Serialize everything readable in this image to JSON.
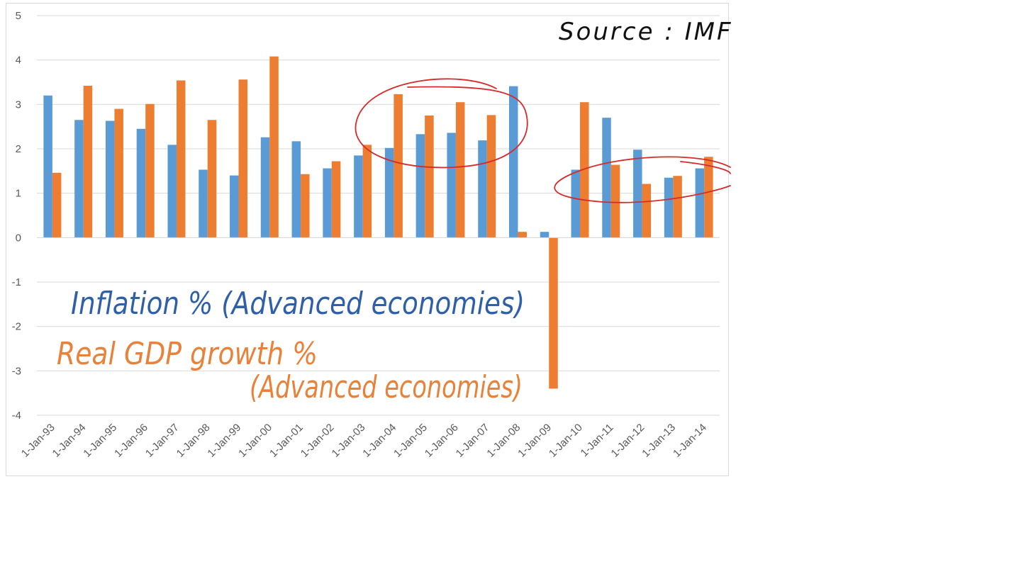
{
  "chart_data": {
    "type": "bar",
    "categories": [
      "1-Jan-93",
      "1-Jan-94",
      "1-Jan-95",
      "1-Jan-96",
      "1-Jan-97",
      "1-Jan-98",
      "1-Jan-99",
      "1-Jan-00",
      "1-Jan-01",
      "1-Jan-02",
      "1-Jan-03",
      "1-Jan-04",
      "1-Jan-05",
      "1-Jan-06",
      "1-Jan-07",
      "1-Jan-08",
      "1-Jan-09",
      "1-Jan-10",
      "1-Jan-11",
      "1-Jan-12",
      "1-Jan-13",
      "1-Jan-14"
    ],
    "series": [
      {
        "name": "Inflation % (Advanced economies)",
        "color": "#5b9bd5",
        "values": [
          3.2,
          2.65,
          2.63,
          2.45,
          2.09,
          1.53,
          1.4,
          2.26,
          2.17,
          1.56,
          1.85,
          2.02,
          2.33,
          2.36,
          2.19,
          3.41,
          0.13,
          1.53,
          2.7,
          1.98,
          1.35,
          1.56
        ]
      },
      {
        "name": "Real GDP growth % (Advanced economies)",
        "color": "#ed7d31",
        "values": [
          1.46,
          3.42,
          2.9,
          3.01,
          3.54,
          2.65,
          3.56,
          4.08,
          1.43,
          1.72,
          2.09,
          3.23,
          2.75,
          3.05,
          2.76,
          0.13,
          -3.4,
          3.05,
          1.64,
          1.21,
          1.39,
          1.82
        ]
      }
    ],
    "yticks": [
      "5",
      "4",
      "3",
      "2",
      "1",
      "0",
      "-1",
      "-2",
      "-3",
      "-4"
    ],
    "ylim": [
      -4,
      5
    ],
    "grid": true,
    "title": "",
    "xlabel": "",
    "ylabel": ""
  },
  "annotations": {
    "source": "Source : IMF",
    "inflation_label": "Inflation % (Advanced economies)",
    "gdp_label_line1": "Real GDP growth %",
    "gdp_label_line2": "(Advanced economies)",
    "ink_colors": {
      "black": "#111111",
      "blue": "#2e5fa8",
      "orange": "#e8823a",
      "red": "#d62b2b"
    }
  }
}
